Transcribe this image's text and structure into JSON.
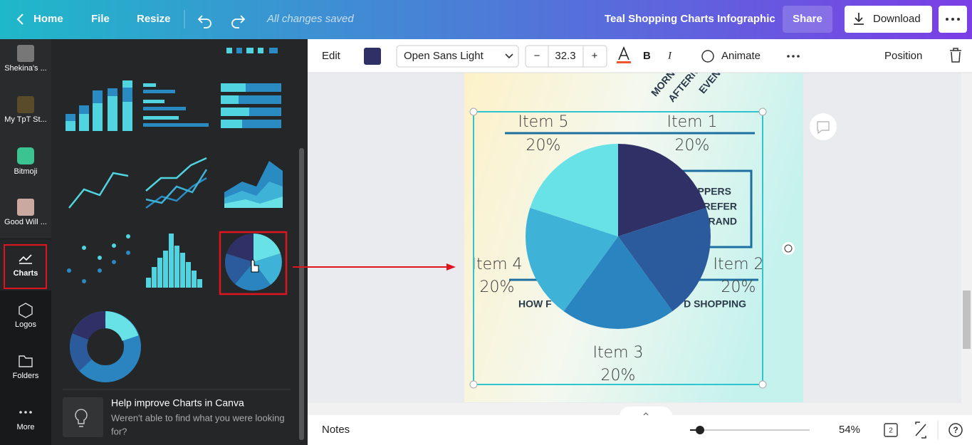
{
  "topbar": {
    "home": "Home",
    "file": "File",
    "resize": "Resize",
    "status": "All changes saved",
    "doc_title": "Teal Shopping Charts Infographic",
    "share": "Share",
    "download": "Download"
  },
  "sidebar": [
    "Shekina's ...",
    "My TpT St...",
    "Bitmoji",
    "Good Will ...",
    "Charts",
    "Logos",
    "Folders",
    "More"
  ],
  "panel": {
    "help_title": "Help improve Charts in Canva",
    "help_text_1": "Weren't able to find what you were looking",
    "help_text_2": "for?"
  },
  "toolbar": {
    "edit": "Edit",
    "font": "Open Sans Light",
    "minus": "−",
    "font_size": "32.3",
    "plus": "+",
    "bold": "B",
    "italic": "I",
    "animate": "Animate",
    "position": "Position"
  },
  "canvas_text": [
    "MORNING",
    "AFTERNOO",
    "EVENI",
    "PPERS",
    "REFER",
    "RAND",
    "HOW F",
    "D SHOPPING"
  ],
  "chart_data": {
    "type": "pie",
    "categories": [
      "Item 1",
      "Item 2",
      "Item 3",
      "Item 4",
      "Item 5"
    ],
    "values": [
      20,
      20,
      20,
      20,
      20
    ],
    "value_labels": [
      "20%",
      "20%",
      "20%",
      "20%",
      "20%"
    ],
    "colors": [
      "#2e3066",
      "#2b5b9c",
      "#2a84bf",
      "#3fb3d7",
      "#68e1e7"
    ]
  },
  "bottombar": {
    "notes": "Notes",
    "zoom": "54%",
    "pages": "2"
  }
}
